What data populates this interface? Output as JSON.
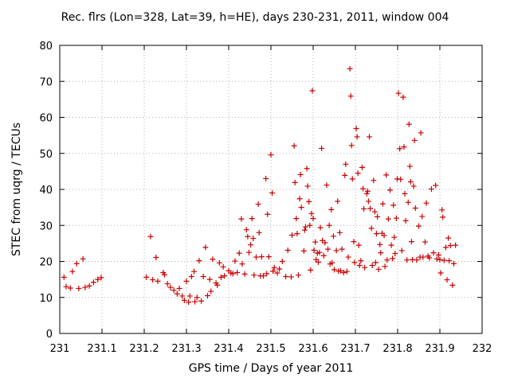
{
  "chart_data": {
    "type": "scatter",
    "title": "Rec. flrs (Lon=328, Lat=39, h=HE), days 230-231, 2011, window 004",
    "xlabel": "GPS time / Days of year 2011",
    "ylabel": "STEC from uqrg / TECUs",
    "xlim": [
      231,
      232
    ],
    "ylim": [
      0,
      80
    ],
    "xticks": [
      "231",
      "231.1",
      "231.2",
      "231.3",
      "231.4",
      "231.5",
      "231.6",
      "231.7",
      "231.8",
      "231.9",
      "232"
    ],
    "yticks": [
      "0",
      "10",
      "20",
      "30",
      "40",
      "50",
      "60",
      "70",
      "80"
    ],
    "marker": "+",
    "color": "#cc0000",
    "grid": true,
    "points": [
      [
        231.01,
        15.6
      ],
      [
        231.015,
        13.0
      ],
      [
        231.025,
        12.6
      ],
      [
        231.03,
        17.2
      ],
      [
        231.04,
        19.4
      ],
      [
        231.045,
        12.5
      ],
      [
        231.055,
        20.7
      ],
      [
        231.06,
        12.8
      ],
      [
        231.07,
        13.2
      ],
      [
        231.08,
        14.2
      ],
      [
        231.09,
        15.0
      ],
      [
        231.098,
        15.5
      ],
      [
        231.205,
        15.6
      ],
      [
        231.215,
        26.9
      ],
      [
        231.22,
        14.9
      ],
      [
        231.228,
        21.1
      ],
      [
        231.232,
        14.5
      ],
      [
        231.245,
        16.9
      ],
      [
        231.248,
        16.3
      ],
      [
        231.255,
        13.8
      ],
      [
        231.262,
        12.8
      ],
      [
        231.27,
        12.0
      ],
      [
        231.278,
        11.0
      ],
      [
        231.283,
        12.5
      ],
      [
        231.29,
        10.4
      ],
      [
        231.295,
        9.2
      ],
      [
        231.3,
        14.5
      ],
      [
        231.305,
        8.7
      ],
      [
        231.308,
        10.4
      ],
      [
        231.312,
        15.8
      ],
      [
        231.318,
        17.2
      ],
      [
        231.32,
        8.8
      ],
      [
        231.325,
        10.0
      ],
      [
        231.33,
        20.2
      ],
      [
        231.335,
        9.0
      ],
      [
        231.34,
        15.8
      ],
      [
        231.345,
        23.9
      ],
      [
        231.35,
        10.5
      ],
      [
        231.355,
        15.0
      ],
      [
        231.358,
        11.7
      ],
      [
        231.362,
        20.6
      ],
      [
        231.37,
        14.0
      ],
      [
        231.373,
        13.4
      ],
      [
        231.378,
        19.6
      ],
      [
        231.382,
        15.6
      ],
      [
        231.387,
        18.5
      ],
      [
        231.39,
        16.0
      ],
      [
        231.4,
        17.4
      ],
      [
        231.405,
        16.8
      ],
      [
        231.41,
        16.6
      ],
      [
        231.415,
        20.1
      ],
      [
        231.42,
        16.9
      ],
      [
        231.425,
        22.3
      ],
      [
        231.43,
        31.8
      ],
      [
        231.432,
        19.3
      ],
      [
        231.438,
        16.5
      ],
      [
        231.442,
        28.8
      ],
      [
        231.445,
        26.9
      ],
      [
        231.448,
        22.5
      ],
      [
        231.452,
        24.6
      ],
      [
        231.455,
        31.9
      ],
      [
        231.458,
        26.4
      ],
      [
        231.46,
        16.2
      ],
      [
        231.465,
        21.2
      ],
      [
        231.47,
        35.9
      ],
      [
        231.472,
        28.0
      ],
      [
        231.475,
        16.0
      ],
      [
        231.478,
        21.3
      ],
      [
        231.482,
        16.0
      ],
      [
        231.488,
        43.0
      ],
      [
        231.49,
        16.6
      ],
      [
        231.492,
        33.1
      ],
      [
        231.495,
        21.3
      ],
      [
        231.5,
        49.6
      ],
      [
        231.503,
        39.0
      ],
      [
        231.505,
        17.3
      ],
      [
        231.508,
        18.3
      ],
      [
        231.515,
        16.8
      ],
      [
        231.52,
        17.9
      ],
      [
        231.527,
        20.0
      ],
      [
        231.535,
        15.8
      ],
      [
        231.54,
        23.1
      ],
      [
        231.548,
        15.7
      ],
      [
        231.55,
        27.3
      ],
      [
        231.555,
        52.1
      ],
      [
        231.557,
        41.9
      ],
      [
        231.56,
        31.9
      ],
      [
        231.562,
        27.7
      ],
      [
        231.565,
        16.2
      ],
      [
        231.568,
        37.4
      ],
      [
        231.57,
        44.1
      ],
      [
        231.572,
        35.0
      ],
      [
        231.578,
        22.9
      ],
      [
        231.58,
        28.7
      ],
      [
        231.582,
        29.6
      ],
      [
        231.585,
        45.8
      ],
      [
        231.587,
        40.9
      ],
      [
        231.59,
        36.6
      ],
      [
        231.592,
        30.0
      ],
      [
        231.594,
        17.6
      ],
      [
        231.596,
        33.3
      ],
      [
        231.598,
        67.4
      ],
      [
        231.6,
        31.9
      ],
      [
        231.602,
        23.1
      ],
      [
        231.605,
        25.4
      ],
      [
        231.607,
        20.5
      ],
      [
        231.61,
        22.3
      ],
      [
        231.612,
        19.8
      ],
      [
        231.615,
        22.5
      ],
      [
        231.617,
        29.4
      ],
      [
        231.62,
        51.4
      ],
      [
        231.622,
        25.8
      ],
      [
        231.625,
        21.6
      ],
      [
        231.628,
        25.2
      ],
      [
        231.632,
        41.2
      ],
      [
        231.635,
        23.4
      ],
      [
        231.638,
        30.0
      ],
      [
        231.64,
        19.3
      ],
      [
        231.643,
        34.4
      ],
      [
        231.645,
        19.6
      ],
      [
        231.648,
        27.0
      ],
      [
        231.65,
        17.7
      ],
      [
        231.655,
        23.0
      ],
      [
        231.658,
        36.7
      ],
      [
        231.66,
        17.3
      ],
      [
        231.663,
        28.0
      ],
      [
        231.665,
        17.4
      ],
      [
        231.668,
        23.4
      ],
      [
        231.672,
        16.9
      ],
      [
        231.675,
        43.9
      ],
      [
        231.677,
        47.0
      ],
      [
        231.68,
        17.2
      ],
      [
        231.683,
        21.2
      ],
      [
        231.687,
        73.5
      ],
      [
        231.689,
        65.9
      ],
      [
        231.691,
        52.2
      ],
      [
        231.693,
        42.9
      ],
      [
        231.696,
        25.5
      ],
      [
        231.698,
        19.7
      ],
      [
        231.702,
        56.9
      ],
      [
        231.704,
        54.6
      ],
      [
        231.706,
        44.5
      ],
      [
        231.708,
        24.5
      ],
      [
        231.71,
        18.9
      ],
      [
        231.713,
        20.2
      ],
      [
        231.716,
        46.1
      ],
      [
        231.718,
        40.2
      ],
      [
        231.72,
        34.6
      ],
      [
        231.722,
        18.3
      ],
      [
        231.727,
        38.8
      ],
      [
        231.729,
        39.5
      ],
      [
        231.731,
        36.7
      ],
      [
        231.733,
        54.6
      ],
      [
        231.735,
        34.7
      ],
      [
        231.738,
        29.2
      ],
      [
        231.74,
        18.9
      ],
      [
        231.743,
        42.5
      ],
      [
        231.746,
        33.8
      ],
      [
        231.748,
        19.7
      ],
      [
        231.75,
        27.7
      ],
      [
        231.752,
        32.4
      ],
      [
        231.755,
        17.8
      ],
      [
        231.758,
        24.7
      ],
      [
        231.76,
        22.4
      ],
      [
        231.763,
        27.8
      ],
      [
        231.765,
        36.0
      ],
      [
        231.768,
        27.2
      ],
      [
        231.77,
        18.6
      ],
      [
        231.773,
        44.0
      ],
      [
        231.775,
        20.4
      ],
      [
        231.778,
        31.8
      ],
      [
        231.782,
        39.8
      ],
      [
        231.785,
        24.5
      ],
      [
        231.788,
        20.8
      ],
      [
        231.79,
        35.6
      ],
      [
        231.792,
        26.7
      ],
      [
        231.794,
        22.2
      ],
      [
        231.797,
        32.0
      ],
      [
        231.799,
        42.9
      ],
      [
        231.802,
        66.7
      ],
      [
        231.805,
        51.3
      ],
      [
        231.807,
        42.8
      ],
      [
        231.81,
        23.0
      ],
      [
        231.813,
        65.6
      ],
      [
        231.815,
        51.8
      ],
      [
        231.817,
        38.8
      ],
      [
        231.819,
        31.3
      ],
      [
        231.822,
        20.4
      ],
      [
        231.825,
        36.4
      ],
      [
        231.827,
        58.1
      ],
      [
        231.829,
        46.4
      ],
      [
        231.831,
        42.1
      ],
      [
        231.833,
        25.5
      ],
      [
        231.835,
        20.5
      ],
      [
        231.838,
        40.9
      ],
      [
        231.84,
        53.6
      ],
      [
        231.842,
        34.8
      ],
      [
        231.845,
        20.4
      ],
      [
        231.85,
        29.8
      ],
      [
        231.853,
        21.2
      ],
      [
        231.855,
        55.7
      ],
      [
        231.858,
        32.5
      ],
      [
        231.86,
        21.2
      ],
      [
        231.865,
        25.4
      ],
      [
        231.868,
        36.2
      ],
      [
        231.872,
        21.5
      ],
      [
        231.875,
        21.0
      ],
      [
        231.88,
        40.1
      ],
      [
        231.885,
        22.4
      ],
      [
        231.89,
        41.1
      ],
      [
        231.893,
        20.7
      ],
      [
        231.897,
        21.8
      ],
      [
        231.9,
        20.5
      ],
      [
        231.902,
        16.8
      ],
      [
        231.905,
        34.3
      ],
      [
        231.907,
        32.3
      ],
      [
        231.91,
        20.3
      ],
      [
        231.914,
        23.9
      ],
      [
        231.917,
        14.9
      ],
      [
        231.92,
        26.5
      ],
      [
        231.922,
        20.2
      ],
      [
        231.925,
        24.4
      ],
      [
        231.93,
        13.4
      ],
      [
        231.933,
        19.4
      ],
      [
        231.937,
        24.5
      ]
    ]
  }
}
